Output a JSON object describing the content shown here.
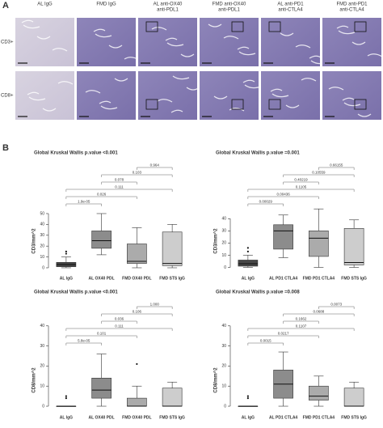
{
  "panel_a": {
    "label": "A",
    "columns": [
      [
        "AL IgG"
      ],
      [
        "FMD IgG"
      ],
      [
        "AL anti-OX40",
        "anti-PDL1"
      ],
      [
        "FMD anti-OX40",
        "anti-PDL1"
      ],
      [
        "AL anti-PD1",
        "anti-CTLA4"
      ],
      [
        "FMD anti-PD1",
        "anti-CTLA4"
      ]
    ],
    "rows": [
      "CD3+",
      "CD8+"
    ]
  },
  "panel_b": {
    "label": "B"
  },
  "chart_data": [
    {
      "type": "box",
      "title": "Global Kruskal Wallis p.value <0.001",
      "y_label": "CD3/mm^2",
      "categories": [
        "AL IgG",
        "AL OX40 PDL",
        "FMD OX40 PDL",
        "FMD STS IgG"
      ],
      "colors": [
        "#474747",
        "#8c8c8c",
        "#ababab",
        "#cdcdcd"
      ],
      "ylim": [
        -3,
        97
      ],
      "yticks": [
        0,
        10,
        20,
        30,
        40,
        50
      ],
      "boxes": [
        {
          "min": 0,
          "q1": 1,
          "median": 3,
          "q3": 5,
          "max": 10,
          "outliers": [
            13,
            15
          ]
        },
        {
          "min": 12,
          "q1": 18,
          "median": 25,
          "q3": 34,
          "max": 50,
          "outliers": []
        },
        {
          "min": 0,
          "q1": 4,
          "median": 6,
          "q3": 22,
          "max": 37,
          "outliers": []
        },
        {
          "min": 0,
          "q1": 2,
          "median": 4,
          "q3": 33,
          "max": 40,
          "outliers": []
        }
      ],
      "brackets": [
        {
          "from": "AL IgG",
          "to": "AL OX40 PDL",
          "label": "1.9e-05"
        },
        {
          "from": "AL IgG",
          "to": "FMD OX40 PDL",
          "label": "0.026"
        },
        {
          "from": "AL IgG",
          "to": "FMD STS IgG",
          "label": "0.111"
        },
        {
          "from": "AL OX40 PDL",
          "to": "FMD OX40 PDL",
          "label": "0.078"
        },
        {
          "from": "AL OX40 PDL",
          "to": "FMD STS IgG",
          "label": "0.103"
        },
        {
          "from": "FMD OX40 PDL",
          "to": "FMD STS IgG",
          "label": "0.964"
        }
      ]
    },
    {
      "type": "box",
      "title": "Global Kruskal Wallis p.value =0.001",
      "y_label": "CD3/mm^2",
      "categories": [
        "AL IgG",
        "AL PD1 CTLA4",
        "FMD PD1 CTLA4",
        "FMD STS IgG"
      ],
      "colors": [
        "#474747",
        "#8c8c8c",
        "#ababab",
        "#cdcdcd"
      ],
      "ylim": [
        -3,
        86
      ],
      "yticks": [
        0,
        10,
        20,
        30,
        40
      ],
      "boxes": [
        {
          "min": 0,
          "q1": 1,
          "median": 3,
          "q3": 6,
          "max": 10,
          "outliers": [
            13,
            16
          ]
        },
        {
          "min": 8,
          "q1": 15,
          "median": 30,
          "q3": 35,
          "max": 43,
          "outliers": []
        },
        {
          "min": 0,
          "q1": 9,
          "median": 24,
          "q3": 30,
          "max": 48,
          "outliers": []
        },
        {
          "min": 0,
          "q1": 2,
          "median": 4,
          "q3": 32,
          "max": 39,
          "outliers": []
        }
      ],
      "brackets": [
        {
          "from": "AL IgG",
          "to": "AL PD1 CTLA4",
          "label": "0.00029"
        },
        {
          "from": "AL IgG",
          "to": "FMD PD1 CTLA4",
          "label": "0.00436"
        },
        {
          "from": "AL IgG",
          "to": "FMD STS IgG",
          "label": "0.1105"
        },
        {
          "from": "AL PD1 CTLA4",
          "to": "FMD PD1 CTLA4",
          "label": "0.40219"
        },
        {
          "from": "AL PD1 CTLA4",
          "to": "FMD STS IgG",
          "label": "0.10559"
        },
        {
          "from": "FMD PD1 CTLA4",
          "to": "FMD STS IgG",
          "label": "0.66155"
        }
      ]
    },
    {
      "type": "box",
      "title": "Global Kruskal Wallis p.value <0.001",
      "y_label": "CD8/mm^2",
      "categories": [
        "AL IgG",
        "AL OX40 PDL",
        "FMD OX40 PDL",
        "FMD STS IgG"
      ],
      "colors": [
        "#474747",
        "#8c8c8c",
        "#ababab",
        "#cdcdcd"
      ],
      "ylim": [
        -2,
        52
      ],
      "yticks": [
        0,
        10,
        20,
        30,
        40
      ],
      "boxes": [
        {
          "min": 0,
          "q1": 0,
          "median": 0,
          "q3": 0,
          "max": 0,
          "outliers": [
            4,
            5
          ]
        },
        {
          "min": 0,
          "q1": 4,
          "median": 8,
          "q3": 14,
          "max": 26,
          "outliers": []
        },
        {
          "min": 0,
          "q1": 0,
          "median": 0,
          "q3": 4,
          "max": 10,
          "outliers": [
            21
          ]
        },
        {
          "min": 0,
          "q1": 0,
          "median": 0,
          "q3": 9,
          "max": 12,
          "outliers": []
        }
      ],
      "brackets": [
        {
          "from": "AL IgG",
          "to": "AL OX40 PDL",
          "label": "5.8e-05"
        },
        {
          "from": "AL IgG",
          "to": "FMD OX40 PDL",
          "label": "0.101"
        },
        {
          "from": "AL IgG",
          "to": "FMD STS IgG",
          "label": "0.111"
        },
        {
          "from": "AL OX40 PDL",
          "to": "FMD OX40 PDL",
          "label": "0.036"
        },
        {
          "from": "AL OX40 PDL",
          "to": "FMD STS IgG",
          "label": "0.106"
        },
        {
          "from": "FMD OX40 PDL",
          "to": "FMD STS IgG",
          "label": "1.000"
        }
      ]
    },
    {
      "type": "box",
      "title": "Global Kruskal Wallis p.value =0.008",
      "y_label": "CD8/mm^2",
      "categories": [
        "AL IgG",
        "AL PD1 CTLA4",
        "FMD PD1 CTLA4",
        "FMD STS IgG"
      ],
      "colors": [
        "#474747",
        "#8c8c8c",
        "#ababab",
        "#cdcdcd"
      ],
      "ylim": [
        -2,
        52
      ],
      "yticks": [
        0,
        10,
        20,
        30,
        40
      ],
      "boxes": [
        {
          "min": 0,
          "q1": 0,
          "median": 0,
          "q3": 0,
          "max": 0,
          "outliers": [
            4,
            5
          ]
        },
        {
          "min": 0,
          "q1": 4,
          "median": 11,
          "q3": 18,
          "max": 27,
          "outliers": []
        },
        {
          "min": 0,
          "q1": 3,
          "median": 5,
          "q3": 10,
          "max": 15,
          "outliers": []
        },
        {
          "min": 0,
          "q1": 0,
          "median": 0,
          "q3": 9,
          "max": 12,
          "outliers": []
        }
      ],
      "brackets": [
        {
          "from": "AL IgG",
          "to": "AL PD1 CTLA4",
          "label": "0.0015"
        },
        {
          "from": "AL IgG",
          "to": "FMD PD1 CTLA4",
          "label": "0.0217"
        },
        {
          "from": "AL IgG",
          "to": "FMD STS IgG",
          "label": "0.1107"
        },
        {
          "from": "AL PD1 CTLA4",
          "to": "FMD PD1 CTLA4",
          "label": "0.1662"
        },
        {
          "from": "AL PD1 CTLA4",
          "to": "FMD STS IgG",
          "label": "0.0688"
        },
        {
          "from": "FMD PD1 CTLA4",
          "to": "FMD STS IgG",
          "label": "0.0073"
        }
      ]
    }
  ]
}
